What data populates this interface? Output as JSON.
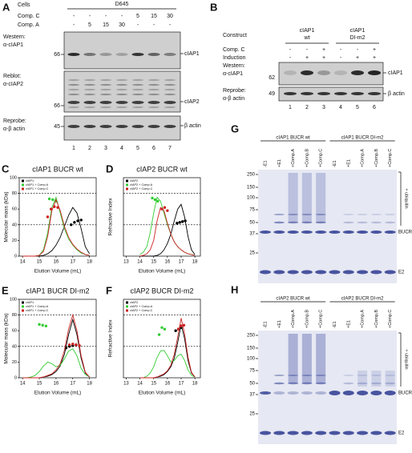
{
  "panel_a": {
    "label": "A",
    "cells_label": "Cells",
    "cell_line": "D645",
    "conditions": [
      {
        "name": "Comp. C",
        "values": [
          "-",
          "-",
          "-",
          "-",
          "5",
          "15",
          "30"
        ]
      },
      {
        "name": "Comp. A",
        "values": [
          "-",
          "5",
          "15",
          "30",
          "-",
          "-",
          "-"
        ]
      }
    ],
    "blots": [
      {
        "probe": [
          "Western:",
          "α-cIAP1"
        ],
        "marker": "66",
        "band": "cIAP1"
      },
      {
        "probe": [
          "Reblot:",
          "α-cIAP2"
        ],
        "marker": "66",
        "band": "cIAP2"
      },
      {
        "probe": [
          "Reprobe:",
          "α-β actin"
        ],
        "marker": "45",
        "band": "β actin"
      }
    ],
    "lanes": [
      "1",
      "2",
      "3",
      "4",
      "5",
      "6",
      "7"
    ]
  },
  "panel_b": {
    "label": "B",
    "construct_label": "Construct",
    "constructs": [
      {
        "name": [
          "cIAP1",
          "wt"
        ]
      },
      {
        "name": [
          "cIAP1",
          "DI-m2"
        ]
      }
    ],
    "conditions": [
      {
        "name": "Comp. C",
        "values": [
          "-",
          "-",
          "+",
          "-",
          "-",
          "+"
        ]
      },
      {
        "name": "Induction",
        "values": [
          "-",
          "+",
          "+",
          "-",
          "+",
          "+"
        ]
      }
    ],
    "blots": [
      {
        "probe": [
          "Western:",
          "α-cIAP1"
        ],
        "marker": "62",
        "band": "cIAP1"
      },
      {
        "probe": [
          "Reprobe:",
          "α-β actin"
        ],
        "marker": "49",
        "band": "β actin"
      }
    ],
    "lanes": [
      "1",
      "2",
      "3",
      "4",
      "5",
      "6"
    ]
  },
  "chart_data": [
    {
      "type": "line",
      "panel_label": "C",
      "title": "cIAP1 BUCR wt",
      "x_label": "Elution Volume (mL)",
      "y_label": "Molecular mass (kDa)",
      "xlim": [
        13.8,
        18.4
      ],
      "ylim": [
        0,
        100
      ],
      "xticks": [
        14,
        15,
        16,
        17,
        18
      ],
      "yticks": [
        0,
        20,
        40,
        60,
        80,
        100
      ],
      "ref_lines": [
        40,
        80
      ],
      "legend": "upper left",
      "x": [
        14,
        14.25,
        14.5,
        14.75,
        15,
        15.25,
        15.5,
        15.75,
        16,
        16.25,
        16.5,
        16.75,
        17,
        17.25,
        17.5,
        17.75,
        18
      ],
      "series": [
        {
          "name": "cIAP1",
          "color": "#000000",
          "values": [
            0,
            0,
            0,
            0,
            0,
            1,
            3,
            7,
            14,
            24,
            38,
            52,
            62,
            55,
            35,
            12,
            3
          ],
          "mass_x": [
            16.9,
            17.1,
            17.3,
            17.5
          ],
          "mass": [
            40,
            43,
            45,
            46
          ]
        },
        {
          "name": "cIAP1 + Comp.A",
          "color": "#33cc33",
          "values": [
            0,
            0,
            0,
            0,
            1,
            8,
            30,
            62,
            75,
            55,
            35,
            22,
            14,
            8,
            4,
            2,
            1
          ],
          "mass_x": [
            15.6,
            15.8,
            16.0
          ],
          "mass": [
            73,
            72,
            70
          ]
        },
        {
          "name": "cIAP1 + Comp.C",
          "color": "#cc2222",
          "values": [
            0,
            0,
            0,
            0,
            1,
            6,
            25,
            58,
            72,
            58,
            38,
            24,
            15,
            9,
            5,
            2,
            1
          ],
          "mass_x": [
            15.5,
            15.7,
            15.9,
            16.1
          ],
          "mass": [
            50,
            60,
            63,
            62
          ]
        }
      ]
    },
    {
      "type": "line",
      "panel_label": "D",
      "title": "cIAP2 BUCR wt",
      "x_label": "Elution Volume (mL)",
      "y_label": "Refractive Index",
      "xlim": [
        12.8,
        18.4
      ],
      "ylim": [
        0,
        100
      ],
      "xticks": [
        13,
        14,
        15,
        16,
        17,
        18
      ],
      "ref_lines": [
        40,
        80
      ],
      "legend": "upper left",
      "x": [
        14,
        14.25,
        14.5,
        14.75,
        15,
        15.25,
        15.5,
        15.75,
        16,
        16.25,
        16.5,
        16.75,
        17,
        17.25,
        17.5,
        17.75,
        18
      ],
      "series": [
        {
          "name": "cIAP2",
          "color": "#000000",
          "values": [
            0,
            0,
            0,
            0,
            0,
            1,
            3,
            8,
            16,
            28,
            45,
            60,
            66,
            50,
            25,
            8,
            2
          ],
          "mass_x": [
            16.7,
            16.9,
            17.1,
            17.3
          ],
          "mass": [
            42,
            43,
            44,
            45
          ]
        },
        {
          "name": "cIAP2 + Comp.A",
          "color": "#33cc33",
          "values": [
            2,
            5,
            12,
            30,
            55,
            75,
            70,
            55,
            40,
            28,
            18,
            12,
            8,
            5,
            3,
            2,
            1
          ],
          "mass_x": [
            14.9,
            15.1,
            15.3
          ],
          "mass": [
            74,
            72,
            70
          ]
        },
        {
          "name": "cIAP2 + Comp.C",
          "color": "#cc2222",
          "values": [
            0,
            1,
            3,
            8,
            20,
            45,
            62,
            58,
            42,
            28,
            18,
            12,
            8,
            5,
            3,
            2,
            1
          ],
          "mass_x": [
            15.6,
            15.8,
            16.0
          ],
          "mass": [
            60,
            62,
            58
          ]
        }
      ]
    },
    {
      "type": "line",
      "panel_label": "E",
      "title": "cIAP1 BUCR DI-m2",
      "x_label": "Elution Volume (mL)",
      "y_label": "Molecular mass (kDa)",
      "xlim": [
        13.8,
        18.4
      ],
      "ylim": [
        0,
        100
      ],
      "xticks": [
        14,
        15,
        16,
        17,
        18
      ],
      "yticks": [
        0,
        20,
        40,
        60,
        80,
        100
      ],
      "ref_lines": [
        40,
        80
      ],
      "legend": "upper left",
      "x": [
        14,
        14.25,
        14.5,
        14.75,
        15,
        15.25,
        15.5,
        15.75,
        16,
        16.25,
        16.5,
        16.75,
        17,
        17.25,
        17.5,
        17.75,
        18
      ],
      "series": [
        {
          "name": "cIAP1",
          "color": "#000000",
          "values": [
            0,
            0,
            0,
            0,
            0,
            1,
            2,
            4,
            8,
            15,
            30,
            55,
            74,
            55,
            25,
            6,
            1
          ],
          "mass_x": [
            16.6,
            16.8,
            17.0,
            17.2
          ],
          "mass": [
            38,
            40,
            41,
            42
          ]
        },
        {
          "name": "cIAP1 + Comp.A",
          "color": "#33cc33",
          "values": [
            0,
            0,
            1,
            3,
            8,
            15,
            20,
            18,
            14,
            16,
            24,
            34,
            37,
            28,
            12,
            4,
            1
          ],
          "mass_x": [
            15.0,
            15.2,
            15.4
          ],
          "mass": [
            68,
            67,
            66
          ]
        },
        {
          "name": "cIAP1 + Comp.C",
          "color": "#cc2222",
          "values": [
            0,
            0,
            0,
            0,
            0,
            1,
            3,
            5,
            10,
            18,
            35,
            62,
            80,
            60,
            28,
            7,
            1
          ],
          "mass_x": [
            16.8,
            17.0,
            17.2,
            17.4
          ],
          "mass": [
            42,
            43,
            42,
            41
          ]
        }
      ]
    },
    {
      "type": "line",
      "panel_label": "F",
      "title": "cIAP2 BUCR DI-m2",
      "x_label": "Elution Volume (mL)",
      "y_label": "Refractive Index",
      "xlim": [
        12.8,
        18.4
      ],
      "ylim": [
        0,
        100
      ],
      "xticks": [
        13,
        14,
        15,
        16,
        17,
        18
      ],
      "ref_lines": [
        40,
        80
      ],
      "legend": "upper left",
      "x": [
        14,
        14.25,
        14.5,
        14.75,
        15,
        15.25,
        15.5,
        15.75,
        16,
        16.25,
        16.5,
        16.75,
        17,
        17.25,
        17.5,
        17.75,
        18
      ],
      "series": [
        {
          "name": "cIAP2",
          "color": "#000000",
          "values": [
            0,
            0,
            0,
            0,
            0,
            1,
            2,
            4,
            8,
            14,
            25,
            45,
            68,
            50,
            22,
            6,
            1
          ],
          "mass_x": [
            16.6,
            16.8,
            17.0
          ],
          "mass": [
            60,
            62,
            64
          ]
        },
        {
          "name": "cIAP2 + Comp.A",
          "color": "#33cc33",
          "values": [
            0,
            0,
            2,
            6,
            14,
            26,
            34,
            35,
            28,
            20,
            22,
            28,
            30,
            22,
            10,
            3,
            1
          ],
          "mass_x": [
            15.4,
            15.6,
            15.8
          ],
          "mass": [
            55,
            64,
            62
          ]
        },
        {
          "name": "cIAP2 + Comp.C",
          "color": "#cc2222",
          "values": [
            0,
            0,
            0,
            0,
            0,
            1,
            3,
            5,
            9,
            16,
            30,
            52,
            76,
            56,
            26,
            7,
            1
          ],
          "mass_x": [
            16.8,
            17.0,
            17.2
          ],
          "mass": [
            62,
            66,
            67
          ]
        }
      ]
    }
  ],
  "panel_g": {
    "label": "G",
    "groups": [
      {
        "name": "cIAP1 BUCR wt",
        "lanes": [
          "-E1",
          "+E1",
          "+Comp.A",
          "+Comp.B",
          "+Comp.C"
        ]
      },
      {
        "name": "cIAP1 BUCR DI-m2",
        "lanes": [
          "-E1",
          "+E1",
          "+Comp.A",
          "+Comp.B",
          "+Comp.C"
        ]
      }
    ],
    "markers": [
      250,
      150,
      100,
      75,
      50,
      37,
      25
    ],
    "smear_label": "+ ubiquitin",
    "bands": [
      "BUCR",
      "E2"
    ]
  },
  "panel_h": {
    "label": "H",
    "groups": [
      {
        "name": "cIAP2 BUCR wt",
        "lanes": [
          "-E1",
          "+E1",
          "+Comp.A",
          "+Comp.B",
          "+Comp.C"
        ]
      },
      {
        "name": "cIAP2 BUCR DI-m2",
        "lanes": [
          "-E1",
          "+E1",
          "+Comp.A",
          "+Comp.B",
          "+Comp.C"
        ]
      }
    ],
    "markers": [
      250,
      150,
      100,
      75,
      50,
      37,
      25
    ],
    "smear_label": "+ ubiquitin",
    "bands": [
      "BUCR",
      "E2"
    ]
  }
}
